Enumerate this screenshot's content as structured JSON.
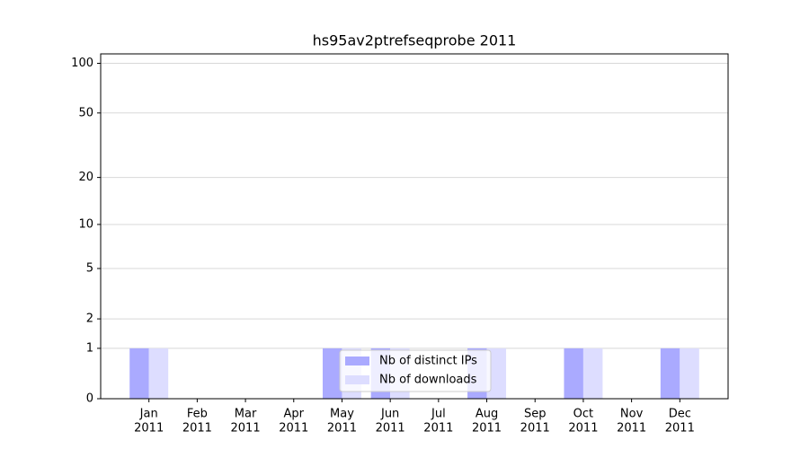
{
  "chart_data": {
    "type": "bar",
    "title": "hs95av2ptrefseqprobe 2011",
    "categories": [
      [
        "Jan",
        "2011"
      ],
      [
        "Feb",
        "2011"
      ],
      [
        "Mar",
        "2011"
      ],
      [
        "Apr",
        "2011"
      ],
      [
        "May",
        "2011"
      ],
      [
        "Jun",
        "2011"
      ],
      [
        "Jul",
        "2011"
      ],
      [
        "Aug",
        "2011"
      ],
      [
        "Sep",
        "2011"
      ],
      [
        "Oct",
        "2011"
      ],
      [
        "Nov",
        "2011"
      ],
      [
        "Dec",
        "2011"
      ]
    ],
    "series": [
      {
        "name": "Nb of distinct IPs",
        "color": "#aaaaff",
        "values": [
          1,
          0,
          0,
          0,
          1,
          1,
          0,
          1,
          0,
          1,
          0,
          1
        ]
      },
      {
        "name": "Nb of downloads",
        "color": "#ddddff",
        "values": [
          1,
          0,
          0,
          0,
          1,
          1,
          0,
          1,
          0,
          1,
          0,
          1
        ]
      }
    ],
    "yscale": "log1p",
    "ylim": [
      0,
      114
    ],
    "yticks": [
      0,
      1,
      2,
      5,
      10,
      20,
      50,
      100
    ],
    "grid": true,
    "legend": "lower center"
  }
}
